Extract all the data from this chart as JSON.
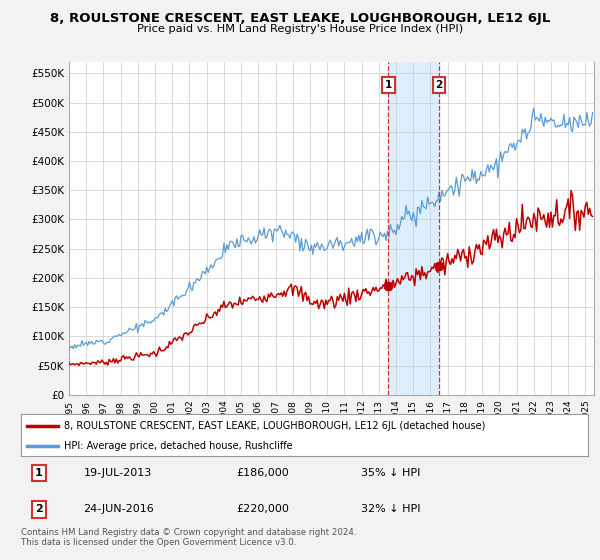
{
  "title": "8, ROULSTONE CRESCENT, EAST LEAKE, LOUGHBOROUGH, LE12 6JL",
  "subtitle": "Price paid vs. HM Land Registry's House Price Index (HPI)",
  "hpi_color": "#5b9bd5",
  "price_color": "#c00000",
  "highlight_color": "#ddeeff",
  "ylim": [
    0,
    570000
  ],
  "yticks": [
    0,
    50000,
    100000,
    150000,
    200000,
    250000,
    300000,
    350000,
    400000,
    450000,
    500000,
    550000
  ],
  "ytick_labels": [
    "£0",
    "£50K",
    "£100K",
    "£150K",
    "£200K",
    "£250K",
    "£300K",
    "£350K",
    "£400K",
    "£450K",
    "£500K",
    "£550K"
  ],
  "xlim_start": 1995,
  "xlim_end": 2025.5,
  "legend_property_label": "8, ROULSTONE CRESCENT, EAST LEAKE, LOUGHBOROUGH, LE12 6JL (detached house)",
  "legend_hpi_label": "HPI: Average price, detached house, Rushcliffe",
  "transaction1_date": "19-JUL-2013",
  "transaction1_price": "£186,000",
  "transaction1_hpi": "35% ↓ HPI",
  "transaction1_x": 2013.55,
  "transaction1_y": 186000,
  "transaction2_date": "24-JUN-2016",
  "transaction2_price": "£220,000",
  "transaction2_hpi": "32% ↓ HPI",
  "transaction2_x": 2016.48,
  "transaction2_y": 220000,
  "footnote": "Contains HM Land Registry data © Crown copyright and database right 2024.\nThis data is licensed under the Open Government Licence v3.0.",
  "background_color": "#f2f2f2",
  "plot_bg_color": "#ffffff",
  "grid_color": "#cccccc",
  "hpi_seed": 12,
  "prop_seed": 7
}
